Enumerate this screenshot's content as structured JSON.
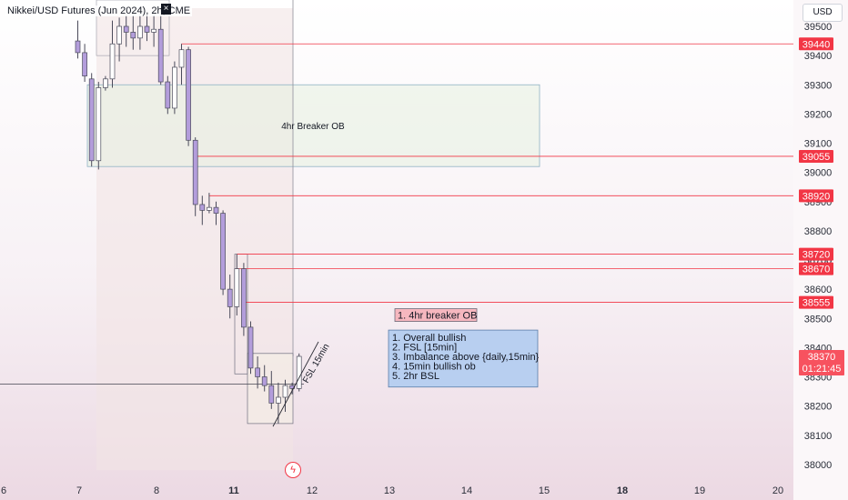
{
  "header": {
    "title": "Nikkei/USD Futures (Jun 2024), 2h, CME",
    "currency": "USD"
  },
  "chart_data": {
    "type": "candlestick",
    "y_ticks": [
      39500,
      39400,
      39300,
      39200,
      39100,
      39000,
      38900,
      38800,
      38700,
      38600,
      38500,
      38400,
      38300,
      38200,
      38100,
      38000
    ],
    "x_ticks": [
      "6",
      "7",
      "8",
      "11",
      "12",
      "13",
      "14",
      "15",
      "18",
      "19",
      "20"
    ],
    "x_ticks_bold": [
      "11",
      "18"
    ],
    "ylim": [
      37980,
      39540
    ],
    "candles": [
      {
        "o": 39450,
        "h": 39520,
        "l": 39390,
        "c": 39410
      },
      {
        "o": 39410,
        "h": 39440,
        "l": 39310,
        "c": 39330
      },
      {
        "o": 39320,
        "h": 39340,
        "l": 39020,
        "c": 39040
      },
      {
        "o": 39040,
        "h": 39310,
        "l": 39010,
        "c": 39290
      },
      {
        "o": 39290,
        "h": 39330,
        "l": 39280,
        "c": 39320
      },
      {
        "o": 39320,
        "h": 39520,
        "l": 39290,
        "c": 39440
      },
      {
        "o": 39440,
        "h": 39530,
        "l": 39380,
        "c": 39500
      },
      {
        "o": 39500,
        "h": 39540,
        "l": 39430,
        "c": 39480
      },
      {
        "o": 39480,
        "h": 39540,
        "l": 39420,
        "c": 39460
      },
      {
        "o": 39460,
        "h": 39540,
        "l": 39420,
        "c": 39500
      },
      {
        "o": 39500,
        "h": 39540,
        "l": 39450,
        "c": 39480
      },
      {
        "o": 39480,
        "h": 39540,
        "l": 39430,
        "c": 39490
      },
      {
        "o": 39490,
        "h": 39540,
        "l": 39300,
        "c": 39310
      },
      {
        "o": 39310,
        "h": 39330,
        "l": 39200,
        "c": 39220
      },
      {
        "o": 39220,
        "h": 39380,
        "l": 39200,
        "c": 39360
      },
      {
        "o": 39360,
        "h": 39440,
        "l": 39300,
        "c": 39420
      },
      {
        "o": 39420,
        "h": 39430,
        "l": 39090,
        "c": 39110
      },
      {
        "o": 39110,
        "h": 39120,
        "l": 38850,
        "c": 38890
      },
      {
        "o": 38890,
        "h": 38920,
        "l": 38820,
        "c": 38870
      },
      {
        "o": 38870,
        "h": 38930,
        "l": 38860,
        "c": 38880
      },
      {
        "o": 38880,
        "h": 38900,
        "l": 38820,
        "c": 38860
      },
      {
        "o": 38860,
        "h": 38870,
        "l": 38580,
        "c": 38600
      },
      {
        "o": 38600,
        "h": 38650,
        "l": 38500,
        "c": 38540
      },
      {
        "o": 38540,
        "h": 38720,
        "l": 38510,
        "c": 38670
      },
      {
        "o": 38670,
        "h": 38690,
        "l": 38440,
        "c": 38470
      },
      {
        "o": 38470,
        "h": 38490,
        "l": 38310,
        "c": 38330
      },
      {
        "o": 38330,
        "h": 38370,
        "l": 38260,
        "c": 38300
      },
      {
        "o": 38300,
        "h": 38340,
        "l": 38250,
        "c": 38270
      },
      {
        "o": 38270,
        "h": 38320,
        "l": 38190,
        "c": 38210
      },
      {
        "o": 38210,
        "h": 38280,
        "l": 38140,
        "c": 38230
      },
      {
        "o": 38230,
        "h": 38290,
        "l": 38180,
        "c": 38270
      },
      {
        "o": 38270,
        "h": 38280,
        "l": 38240,
        "c": 38260
      },
      {
        "o": 38260,
        "h": 38380,
        "l": 38250,
        "c": 38370
      }
    ],
    "horizontal_levels": [
      {
        "price": 39440,
        "label": "39440",
        "x_start_candle": 15
      },
      {
        "price": 39055,
        "label": "39055",
        "x_start_candle": 17
      },
      {
        "price": 38920,
        "label": "38920",
        "x_start_candle": 19
      },
      {
        "price": 38720,
        "label": "38720",
        "x_start_candle": 23
      },
      {
        "price": 38670,
        "label": "38670",
        "x_start_candle": 23
      },
      {
        "price": 38555,
        "label": "38555",
        "x_start_candle": 24
      }
    ],
    "hidden_tick_behind_labels": "38700",
    "current_price": {
      "label": "38370",
      "countdown": "01:21:45"
    },
    "support_line_price": 38275,
    "zone_label": "4hr Breaker OB",
    "trendline_label": "FSL 15min",
    "notes": {
      "first": "1. 4hr breaker OB",
      "checklist": [
        "1. Overall bullish",
        "2. FSL [15min]",
        "3. Imbalance above {daily,15min}",
        "4. 15min bullish ob",
        "5. 2hr BSL"
      ]
    },
    "colors": {
      "up": "#ffffff",
      "down": "#b39ddb",
      "wick": "#4a4a5a",
      "level": "#f23645",
      "zone_fill": "#e6f0e0",
      "zone_border": "#8fb2c4",
      "note_fill": "#b8cff0",
      "note_border": "#5b7ea8",
      "note_red_fill": "#f6b7bf"
    }
  }
}
